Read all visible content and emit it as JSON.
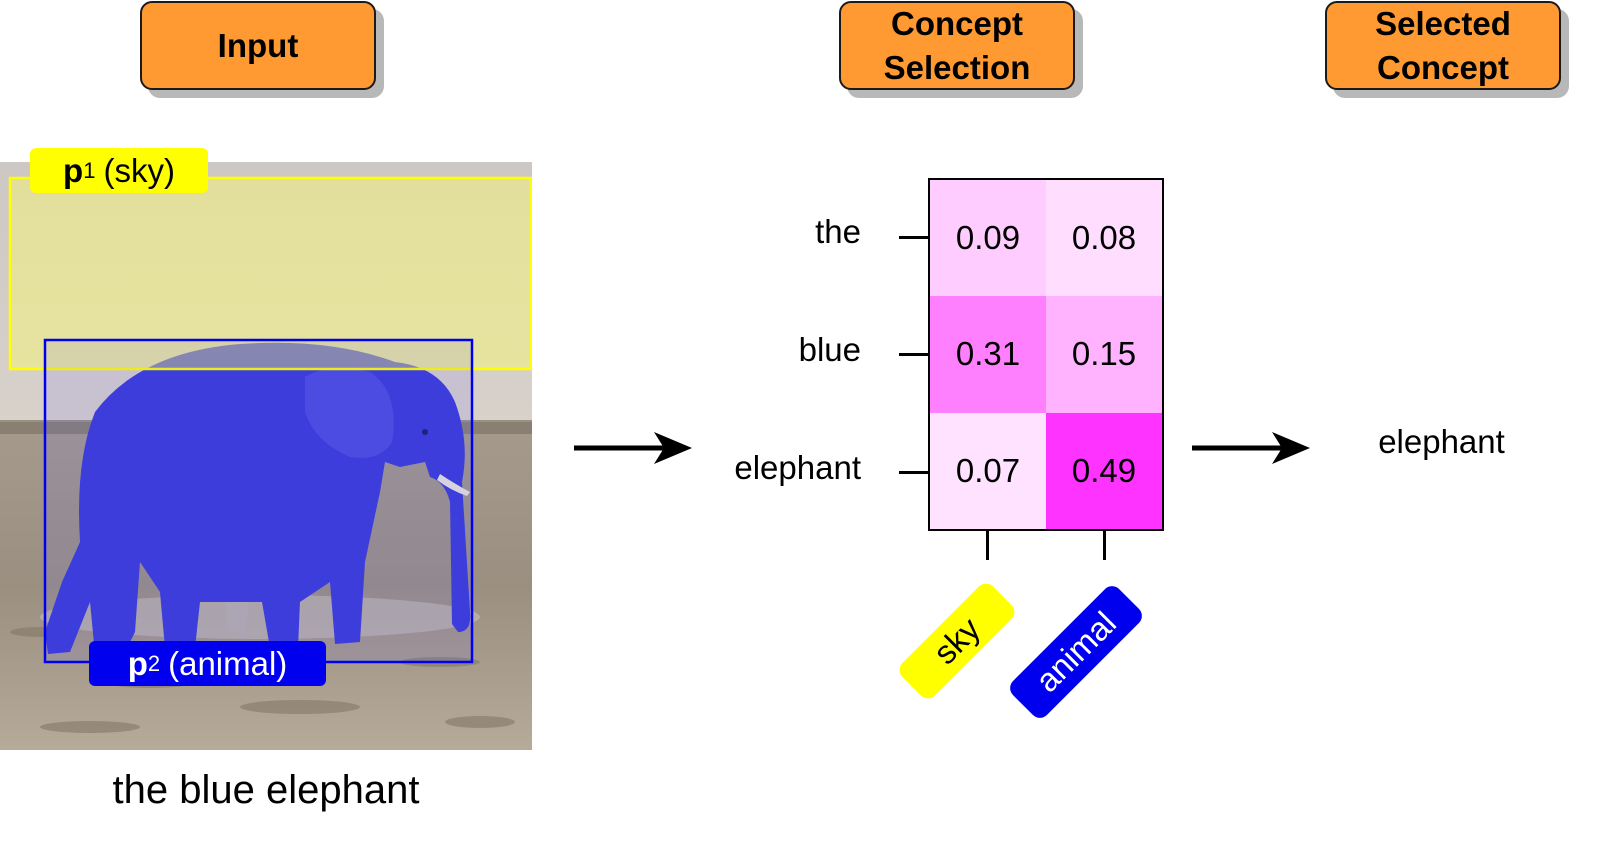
{
  "headers": {
    "input": "Input",
    "concept_line1": "Concept",
    "concept_line2": "Selection",
    "selected_line1": "Selected",
    "selected_line2": "Concept"
  },
  "image": {
    "content": "photo of an elephant on dry ground, highlighted in blue, with yellow sky region",
    "boxes": [
      {
        "id": "p1",
        "letter": "p",
        "index": "1",
        "concept": "(sky)",
        "color": "#ffff00"
      },
      {
        "id": "p2",
        "letter": "p",
        "index": "2",
        "concept": "(animal)",
        "color": "#0000ee"
      }
    ]
  },
  "caption": "the blue elephant",
  "matrix": {
    "rows": [
      "the",
      "blue",
      "elephant"
    ],
    "columns": [
      {
        "label": "sky",
        "color": "#ffff00",
        "text_color": "#000000"
      },
      {
        "label": "animal",
        "color": "#0000ee",
        "text_color": "#ffffff"
      }
    ],
    "values": [
      [
        "0.09",
        "0.08"
      ],
      [
        "0.31",
        "0.15"
      ],
      [
        "0.07",
        "0.49"
      ]
    ],
    "cell_colors": [
      [
        "#ffccff",
        "#ffddff"
      ],
      [
        "#ff80ff",
        "#ffb3ff"
      ],
      [
        "#ffe2ff",
        "#ff33ff"
      ]
    ]
  },
  "result": "elephant"
}
